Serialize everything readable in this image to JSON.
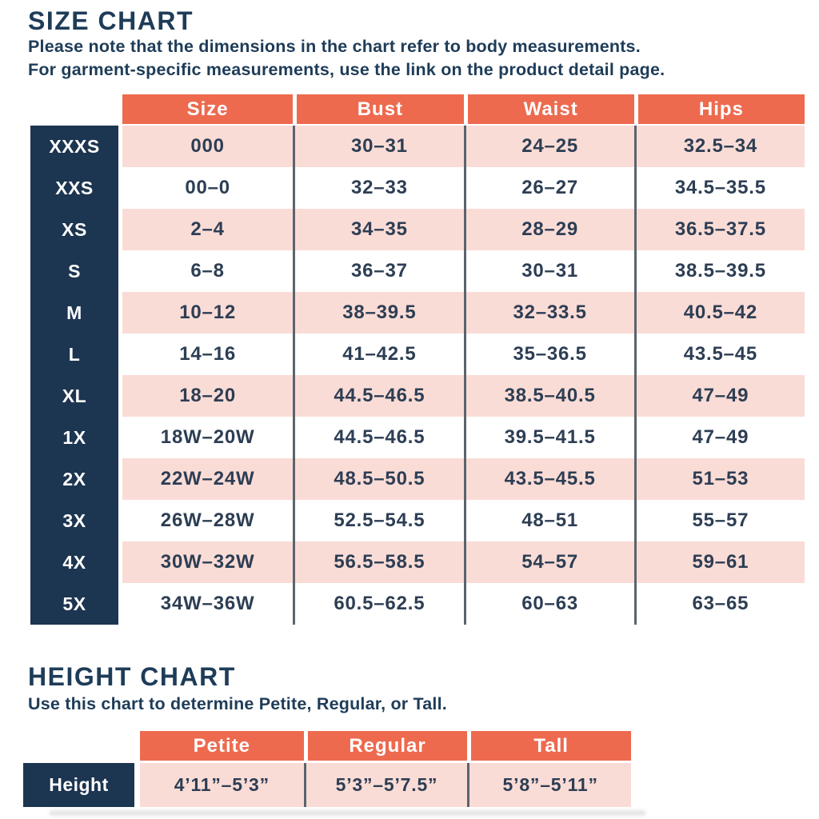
{
  "size_chart": {
    "title": "SIZE CHART",
    "subtitle_line1": "Please note that the dimensions in the chart refer to body measurements.",
    "subtitle_line2": "For garment-specific measurements, use the link on the product detail page.",
    "columns": [
      "Size",
      "Bust",
      "Waist",
      "Hips"
    ],
    "rows": [
      {
        "label": "XXXS",
        "size": "000",
        "bust": "30–31",
        "waist": "24–25",
        "hips": "32.5–34"
      },
      {
        "label": "XXS",
        "size": "00–0",
        "bust": "32–33",
        "waist": "26–27",
        "hips": "34.5–35.5"
      },
      {
        "label": "XS",
        "size": "2–4",
        "bust": "34–35",
        "waist": "28–29",
        "hips": "36.5–37.5"
      },
      {
        "label": "S",
        "size": "6–8",
        "bust": "36–37",
        "waist": "30–31",
        "hips": "38.5–39.5"
      },
      {
        "label": "M",
        "size": "10–12",
        "bust": "38–39.5",
        "waist": "32–33.5",
        "hips": "40.5–42"
      },
      {
        "label": "L",
        "size": "14–16",
        "bust": "41–42.5",
        "waist": "35–36.5",
        "hips": "43.5–45"
      },
      {
        "label": "XL",
        "size": "18–20",
        "bust": "44.5–46.5",
        "waist": "38.5–40.5",
        "hips": "47–49"
      },
      {
        "label": "1X",
        "size": "18W–20W",
        "bust": "44.5–46.5",
        "waist": "39.5–41.5",
        "hips": "47–49"
      },
      {
        "label": "2X",
        "size": "22W–24W",
        "bust": "48.5–50.5",
        "waist": "43.5–45.5",
        "hips": "51–53"
      },
      {
        "label": "3X",
        "size": "26W–28W",
        "bust": "52.5–54.5",
        "waist": "48–51",
        "hips": "55–57"
      },
      {
        "label": "4X",
        "size": "30W–32W",
        "bust": "56.5–58.5",
        "waist": "54–57",
        "hips": "59–61"
      },
      {
        "label": "5X",
        "size": "34W–36W",
        "bust": "60.5–62.5",
        "waist": "60–63",
        "hips": "63–65"
      }
    ]
  },
  "height_chart": {
    "title": "HEIGHT CHART",
    "subtitle": "Use this chart to determine Petite, Regular, or Tall.",
    "columns": [
      "Petite",
      "Regular",
      "Tall"
    ],
    "row_label": "Height",
    "values": [
      "4’11”–5’3”",
      "5’3”–5’7.5”",
      "5’8”–5’11”"
    ]
  },
  "colors": {
    "coral": "#ed6a4f",
    "pink": "#fadcd6",
    "navy": "#1c3551",
    "divider": "#5a646c",
    "title_text": "#1e3c58",
    "cell_text": "#2d3e54",
    "header_text": "#ffffff"
  }
}
